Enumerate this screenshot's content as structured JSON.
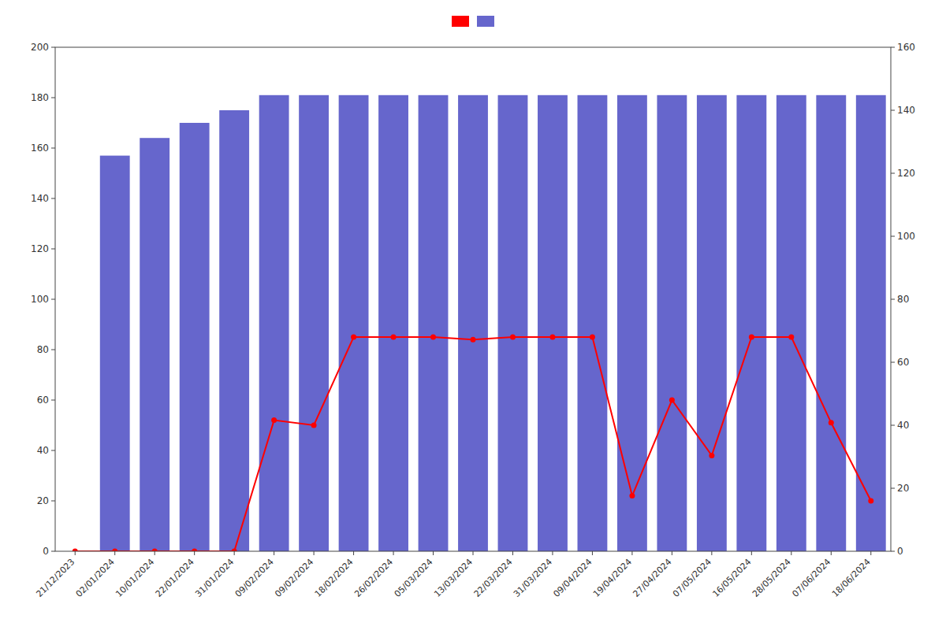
{
  "chart_data": {
    "type": "bar",
    "categories": [
      "21/12/2023",
      "02/01/2024",
      "10/01/2024",
      "22/01/2024",
      "31/01/2024",
      "09/02/2024",
      "09/02/2024",
      "18/02/2024",
      "26/02/2024",
      "05/03/2024",
      "13/03/2024",
      "22/03/2024",
      "31/03/2024",
      "09/04/2024",
      "19/04/2024",
      "27/04/2024",
      "07/05/2024",
      "16/05/2024",
      "28/05/2024",
      "07/06/2024",
      "18/06/2024"
    ],
    "series": [
      {
        "type": "bar",
        "color": "#6666cc",
        "values": [
          0,
          157,
          164,
          170,
          175,
          181,
          181,
          181,
          181,
          181,
          181,
          181,
          181,
          181,
          181,
          181,
          181,
          181,
          181,
          181,
          181
        ]
      },
      {
        "type": "line",
        "color": "#ff0000",
        "marker": "circle",
        "values": [
          0,
          0,
          0,
          0,
          0,
          52,
          50,
          85,
          85,
          85,
          84,
          85,
          85,
          85,
          22,
          60,
          38,
          85,
          85,
          51,
          20
        ]
      }
    ],
    "ylim": [
      0,
      200
    ],
    "yticks": [
      0,
      20,
      40,
      60,
      80,
      100,
      120,
      140,
      160,
      180,
      200
    ],
    "y2lim": [
      0,
      160
    ],
    "y2ticks": [
      0,
      20,
      40,
      60,
      80,
      100,
      120,
      140,
      160
    ],
    "grid": false,
    "legend": "top"
  }
}
